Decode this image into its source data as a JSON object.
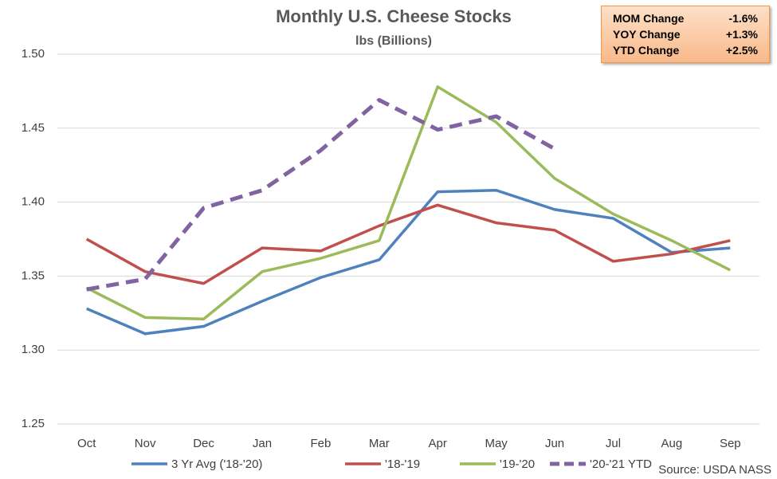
{
  "chart_data": {
    "type": "line",
    "title": "Monthly U.S. Cheese Stocks",
    "subtitle": "lbs (Billions)",
    "source": "Source: USDA NASS",
    "categories": [
      "Oct",
      "Nov",
      "Dec",
      "Jan",
      "Feb",
      "Mar",
      "Apr",
      "May",
      "Jun",
      "Jul",
      "Aug",
      "Sep"
    ],
    "ylim": [
      1.25,
      1.5
    ],
    "yticks": [
      {
        "value": 1.25,
        "label": "1.25"
      },
      {
        "value": 1.3,
        "label": "1.30"
      },
      {
        "value": 1.35,
        "label": "1.35"
      },
      {
        "value": 1.4,
        "label": "1.40"
      },
      {
        "value": 1.45,
        "label": "1.45"
      },
      {
        "value": 1.5,
        "label": "1.50"
      }
    ],
    "grid": true,
    "series": [
      {
        "name": "3 Yr Avg ('18-'20)",
        "color": "#4f81bd",
        "dashed": false,
        "values": [
          1.328,
          1.311,
          1.316,
          1.333,
          1.349,
          1.361,
          1.407,
          1.408,
          1.395,
          1.389,
          1.366,
          1.369
        ]
      },
      {
        "name": "'18-'19",
        "color": "#c0504d",
        "dashed": false,
        "values": [
          1.375,
          1.353,
          1.345,
          1.369,
          1.367,
          1.384,
          1.398,
          1.386,
          1.381,
          1.36,
          1.365,
          1.374
        ]
      },
      {
        "name": "'19-'20",
        "color": "#9bbb59",
        "dashed": false,
        "values": [
          1.342,
          1.322,
          1.321,
          1.353,
          1.362,
          1.374,
          1.478,
          1.454,
          1.416,
          1.392,
          1.374,
          1.354
        ]
      },
      {
        "name": "'20-'21 YTD",
        "color": "#8064a2",
        "dashed": true,
        "values": [
          1.341,
          1.348,
          1.396,
          1.408,
          1.435,
          1.469,
          1.449,
          1.458,
          1.436,
          null,
          null,
          null
        ]
      }
    ],
    "changes": [
      {
        "label": "MOM Change",
        "value": "-1.6%"
      },
      {
        "label": "YOY Change",
        "value": "+1.3%"
      },
      {
        "label": "YTD Change",
        "value": "+2.5%"
      }
    ]
  }
}
